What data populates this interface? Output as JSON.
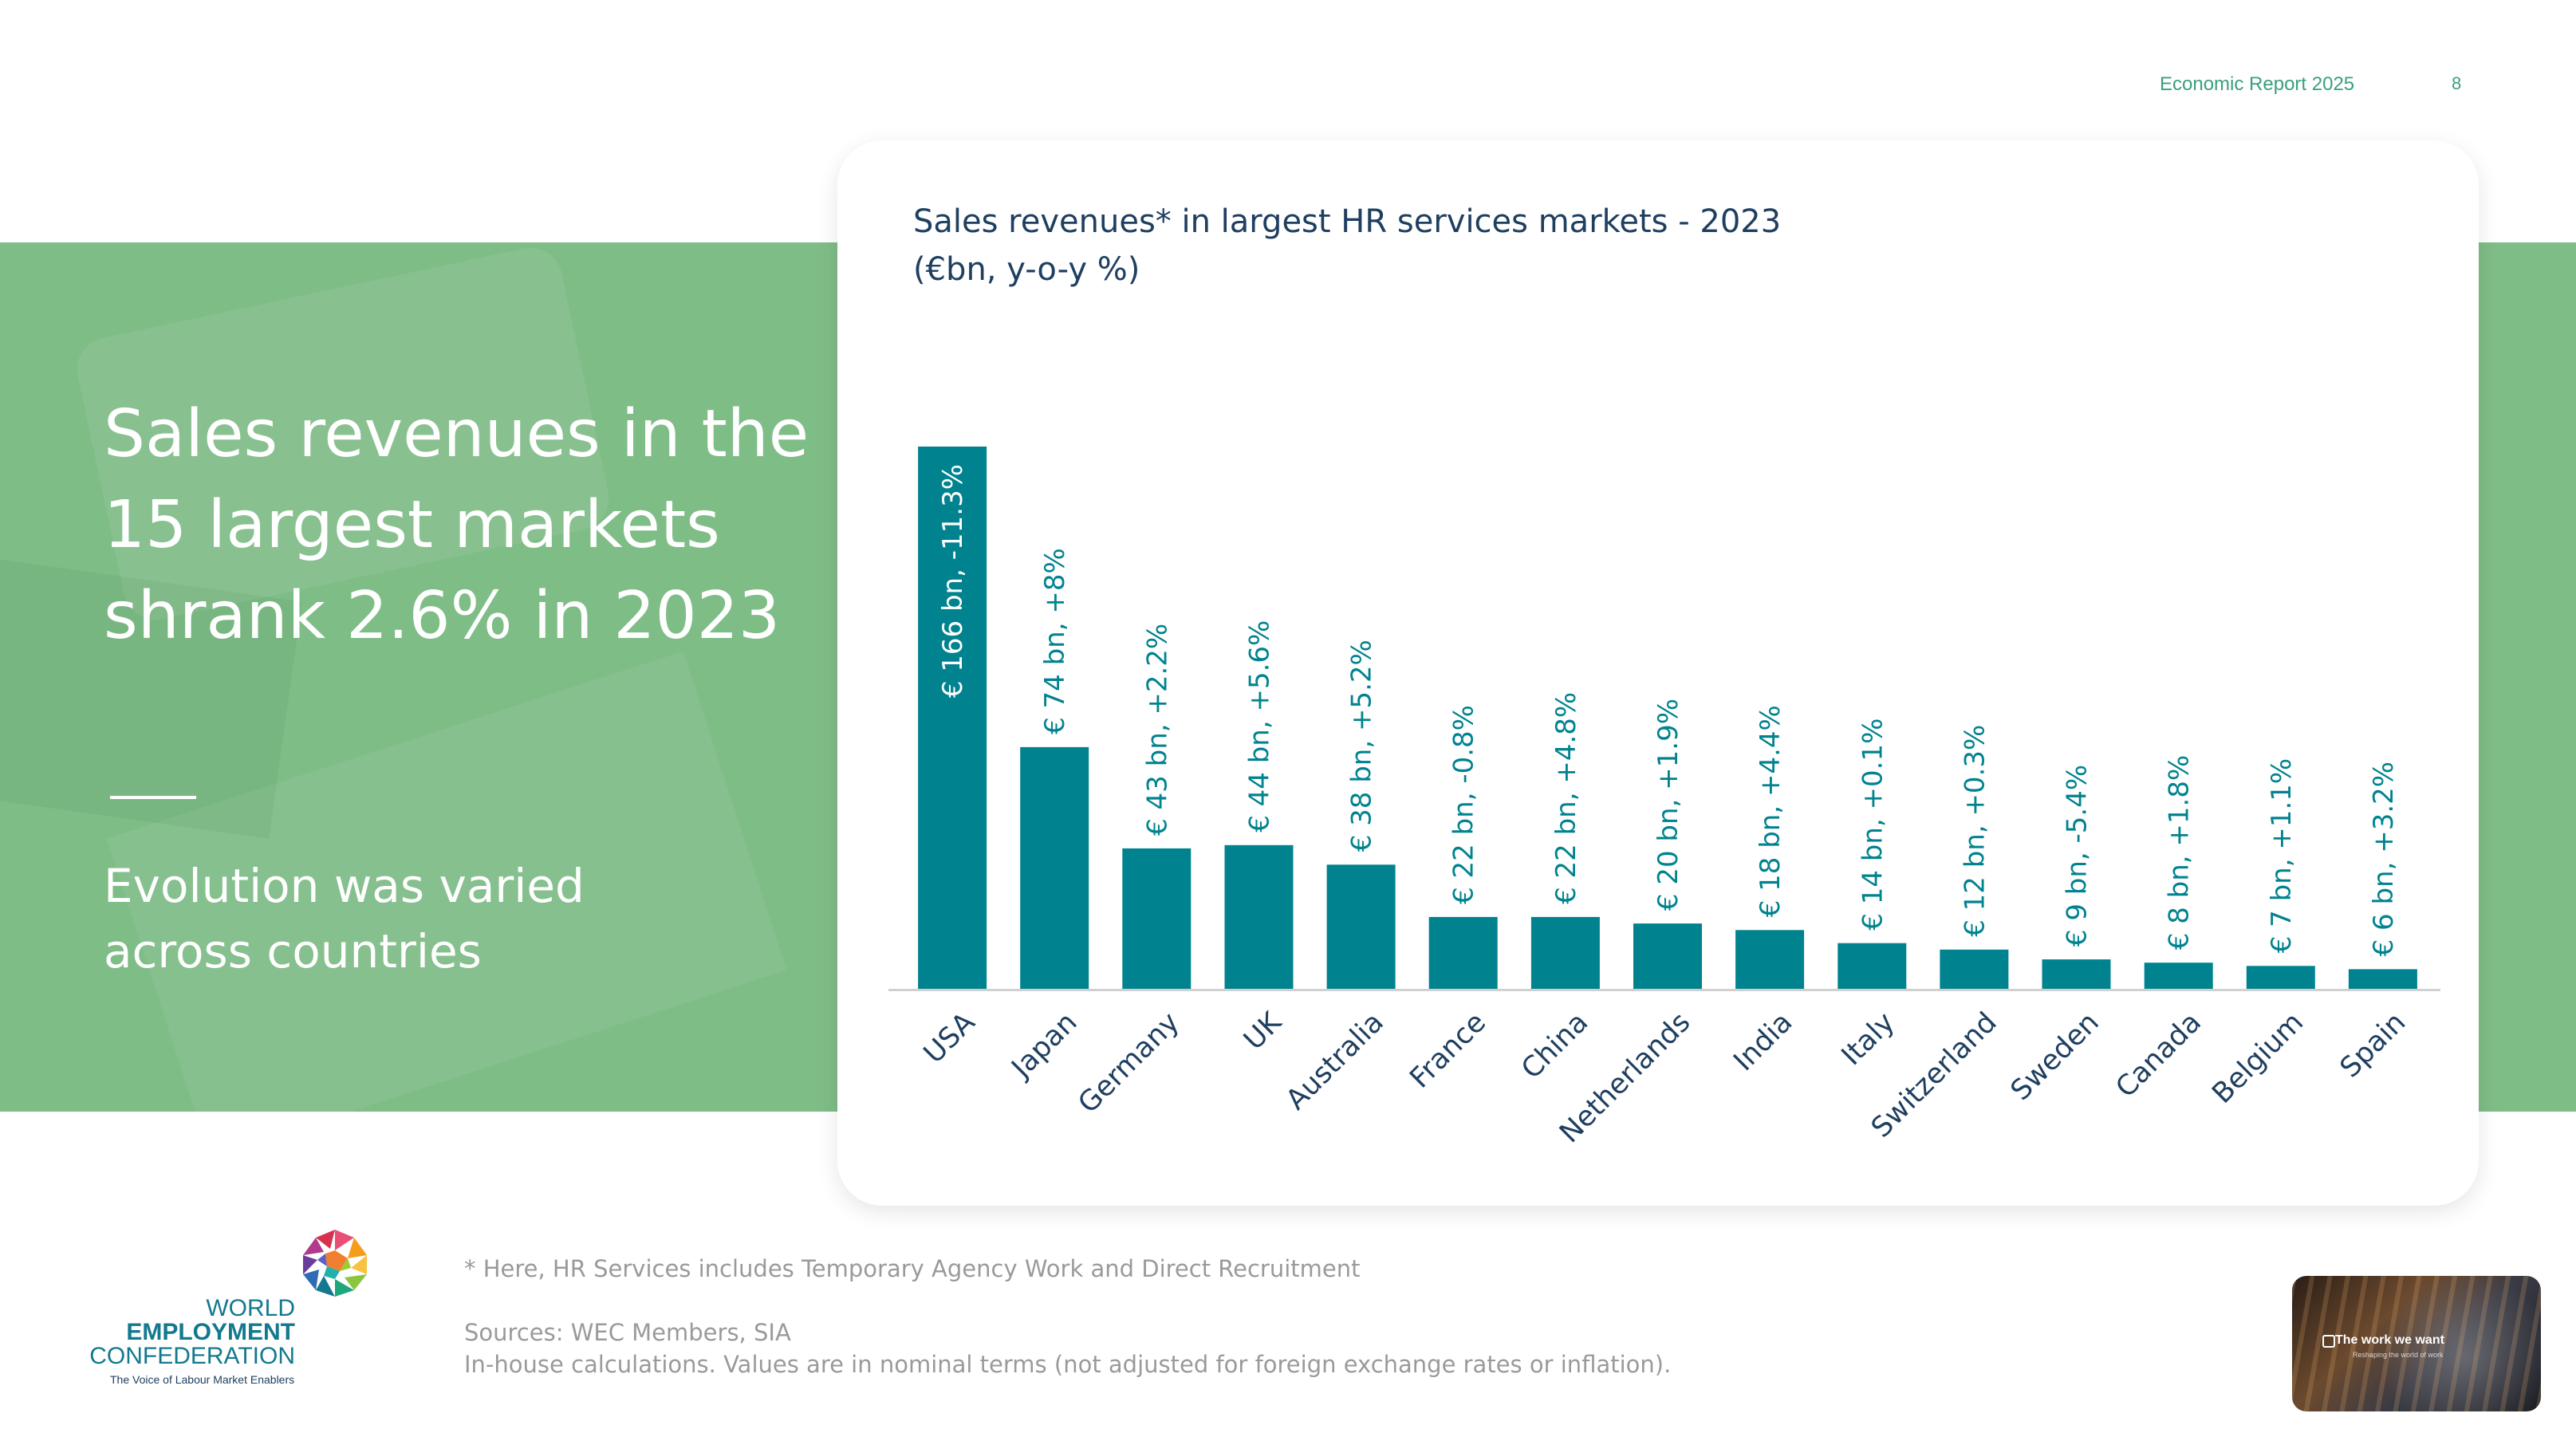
{
  "header": {
    "report_label": "Economic Report 2025",
    "page_number": "8"
  },
  "left_panel": {
    "headline": "Sales revenues in the 15 largest markets shrank 2.6% in 2023",
    "subline": "Evolution was varied across countries"
  },
  "chart_data": {
    "type": "bar",
    "title_line1": "Sales revenues* in largest HR services markets - 2023",
    "title_line2": "(€bn, y-o-y %)",
    "categories": [
      "USA",
      "Japan",
      "Germany",
      "UK",
      "Australia",
      "France",
      "China",
      "Netherlands",
      "India",
      "Italy",
      "Switzerland",
      "Sweden",
      "Canada",
      "Belgium",
      "Spain"
    ],
    "values": [
      166,
      74,
      43,
      44,
      38,
      22,
      22,
      20,
      18,
      14,
      12,
      9,
      8,
      7,
      6
    ],
    "labels": [
      "€ 166 bn, -11.3%",
      "€ 74 bn, +8%",
      "€ 43 bn, +2.2%",
      "€ 44 bn, +5.6%",
      "€ 38 bn, +5.2%",
      "€ 22 bn, -0.8%",
      "€ 22 bn, +4.8%",
      "€ 20 bn, +1.9%",
      "€ 18 bn, +4.4%",
      "€ 14 bn, +0.1%",
      "€ 12 bn, +0.3%",
      "€ 9 bn, -5.4%",
      "€ 8 bn, +1.8%",
      "€ 7 bn, +1.1%",
      "€ 6 bn, +3.2%"
    ],
    "ylim": [
      0,
      166
    ],
    "color": "#00838f",
    "xlabel": "",
    "ylabel": ""
  },
  "footnotes": {
    "note": "* Here, HR Services includes Temporary Agency Work and Direct Recruitment",
    "sources": "Sources: WEC Members, SIA",
    "calc": "In-house calculations. Values are in nominal terms (not adjusted for foreign exchange rates or inflation)."
  },
  "logo": {
    "line1": "WORLD",
    "line2": "EMPLOYMENT",
    "line3": "CONFEDERATION",
    "tagline": "The Voice of Labour Market Enablers"
  },
  "video": {
    "title": "The work we want",
    "subtitle": "Reshaping the world of work"
  },
  "colors": {
    "accent": "#00838f",
    "green_band": "#7fbd87",
    "title": "#1f3f60",
    "header_green": "#3aa07a"
  }
}
